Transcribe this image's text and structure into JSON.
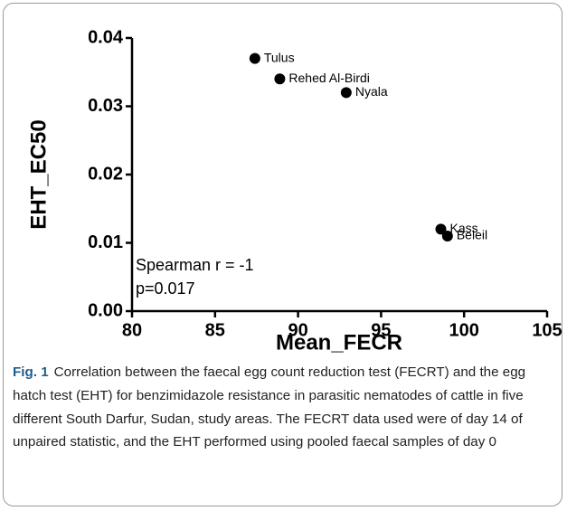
{
  "chart_data": {
    "type": "scatter",
    "xlabel": "Mean_FECR",
    "ylabel": "EHT_EC50",
    "x": [
      87.4,
      88.9,
      92.9,
      98.6,
      99.0
    ],
    "values": [
      0.037,
      0.034,
      0.032,
      0.012,
      0.011
    ],
    "labels": [
      "Tulus",
      "Rehed Al-Birdi",
      "Nyala",
      "Kass",
      "Beleil"
    ],
    "color": "#000000",
    "xlim": [
      80,
      105
    ],
    "xticks": [
      80,
      85,
      90,
      95,
      100,
      105
    ],
    "ylim": [
      0,
      0.04
    ],
    "yticks": [
      {
        "value": 0,
        "label": "0.00"
      },
      0.01,
      0.02,
      0.03,
      0.04
    ],
    "annotations": [
      "Spearman r = -1",
      "p=0.017"
    ]
  },
  "caption": {
    "label": "Fig. 1",
    "text": "Correlation between the faecal egg count reduction test (FECRT) and the egg hatch test (EHT) for benzimidazole resistance in parasitic nematodes of cattle in five different South Darfur, Sudan, study areas. The FECRT data used were of day 14 of unpaired statistic, and the EHT performed using pooled faecal samples of day 0"
  }
}
